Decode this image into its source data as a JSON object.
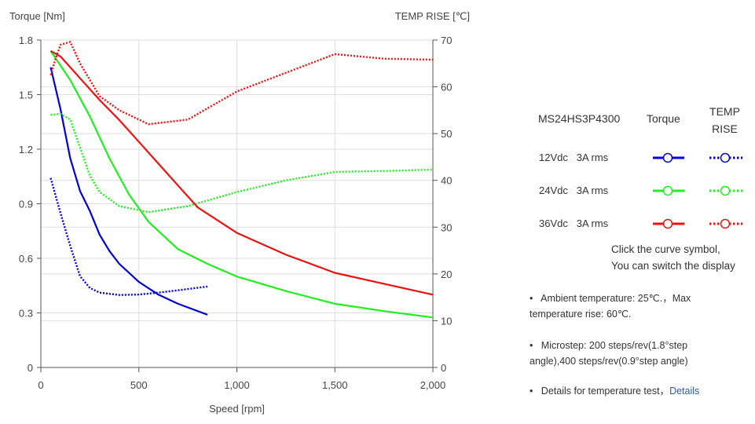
{
  "chart_data": {
    "type": "line",
    "xlabel": "Speed [rpm]",
    "ylabel_left": "Torque  [Nm]",
    "ylabel_right": "TEMP RISE [℃]",
    "xlim": [
      0,
      2000
    ],
    "xticks": [
      0,
      500,
      1000,
      1500,
      2000
    ],
    "xtick_labels": [
      "0",
      "500",
      "1,000",
      "1,500",
      "2,000"
    ],
    "ylim_left": [
      0,
      1.8
    ],
    "yticks_left": [
      "0",
      "0.3",
      "0.6",
      "0.9",
      "1.2",
      "1.5",
      "1.8"
    ],
    "ylim_right": [
      0,
      70
    ],
    "yticks_right": [
      "0",
      "10",
      "20",
      "30",
      "40",
      "50",
      "60",
      "70"
    ],
    "grid": true,
    "series": [
      {
        "name": "12Vdc 3A rms Torque",
        "axis": "left",
        "style": "solid",
        "color": "#0000dd",
        "x": [
          50,
          100,
          150,
          200,
          250,
          300,
          350,
          400,
          500,
          600,
          700,
          850
        ],
        "y": [
          1.65,
          1.42,
          1.15,
          0.97,
          0.86,
          0.73,
          0.64,
          0.57,
          0.47,
          0.4,
          0.35,
          0.29
        ]
      },
      {
        "name": "12Vdc 3A rms TEMP RISE",
        "axis": "right",
        "style": "dotted",
        "color": "#0000dd",
        "x": [
          50,
          100,
          150,
          200,
          250,
          300,
          400,
          500,
          600,
          700,
          850
        ],
        "y": [
          40.5,
          33,
          26,
          19.5,
          17,
          16,
          15.5,
          15.6,
          16,
          16.5,
          17.3
        ]
      },
      {
        "name": "24Vdc 3A rms Torque",
        "axis": "left",
        "style": "solid",
        "color": "#22ee22",
        "x": [
          50,
          150,
          250,
          350,
          450,
          550,
          700,
          850,
          1000,
          1250,
          1500,
          1750,
          2000
        ],
        "y": [
          1.74,
          1.58,
          1.38,
          1.15,
          0.95,
          0.8,
          0.65,
          0.57,
          0.5,
          0.42,
          0.35,
          0.31,
          0.275
        ]
      },
      {
        "name": "24Vdc 3A rms TEMP RISE",
        "axis": "right",
        "style": "dotted",
        "color": "#22ee22",
        "x": [
          50,
          100,
          150,
          200,
          250,
          300,
          400,
          550,
          750,
          1000,
          1250,
          1500,
          1750,
          2000
        ],
        "y": [
          54,
          54.2,
          53,
          47,
          41,
          37.5,
          34.5,
          33.2,
          34.5,
          37.5,
          40,
          41.8,
          42,
          42.3
        ]
      },
      {
        "name": "36Vdc 3A rms Torque",
        "axis": "left",
        "style": "solid",
        "color": "#ee1111",
        "x": [
          50,
          100,
          200,
          300,
          400,
          500,
          600,
          700,
          800,
          1000,
          1250,
          1500,
          1750,
          2000
        ],
        "y": [
          1.74,
          1.71,
          1.59,
          1.47,
          1.36,
          1.24,
          1.12,
          1.0,
          0.88,
          0.74,
          0.62,
          0.52,
          0.46,
          0.4
        ]
      },
      {
        "name": "36Vdc 3A rms TEMP RISE",
        "axis": "right",
        "style": "dotted",
        "color": "#ee1111",
        "x": [
          50,
          75,
          100,
          150,
          200,
          300,
          400,
          550,
          750,
          1000,
          1250,
          1500,
          1750,
          2000
        ],
        "y": [
          62.5,
          66,
          69,
          69.6,
          65,
          58,
          55,
          52,
          53,
          59,
          63,
          67,
          66,
          65.8
        ]
      }
    ]
  },
  "legend": {
    "model": "MS24HS3P4300",
    "torque_header": "Torque",
    "temp_header": "TEMP RISE",
    "rows": [
      {
        "voltage": "12Vdc",
        "current": "3A rms",
        "color": "#0000dd"
      },
      {
        "voltage": "24Vdc",
        "current": "3A rms",
        "color": "#22ee22"
      },
      {
        "voltage": "36Vdc",
        "current": "3A rms",
        "color": "#ee1111"
      }
    ],
    "hint_line1": "Click the curve symbol,",
    "hint_line2": "You can switch the display"
  },
  "notes": {
    "ambient": "Ambient temperature: 25℃.，Max temperature rise: 60℃.",
    "microstep": "Microstep: 200 steps/rev(1.8°step angle),400 steps/rev(0.9°step angle)",
    "details_text": "Details for temperature test，",
    "details_link": "Details"
  }
}
